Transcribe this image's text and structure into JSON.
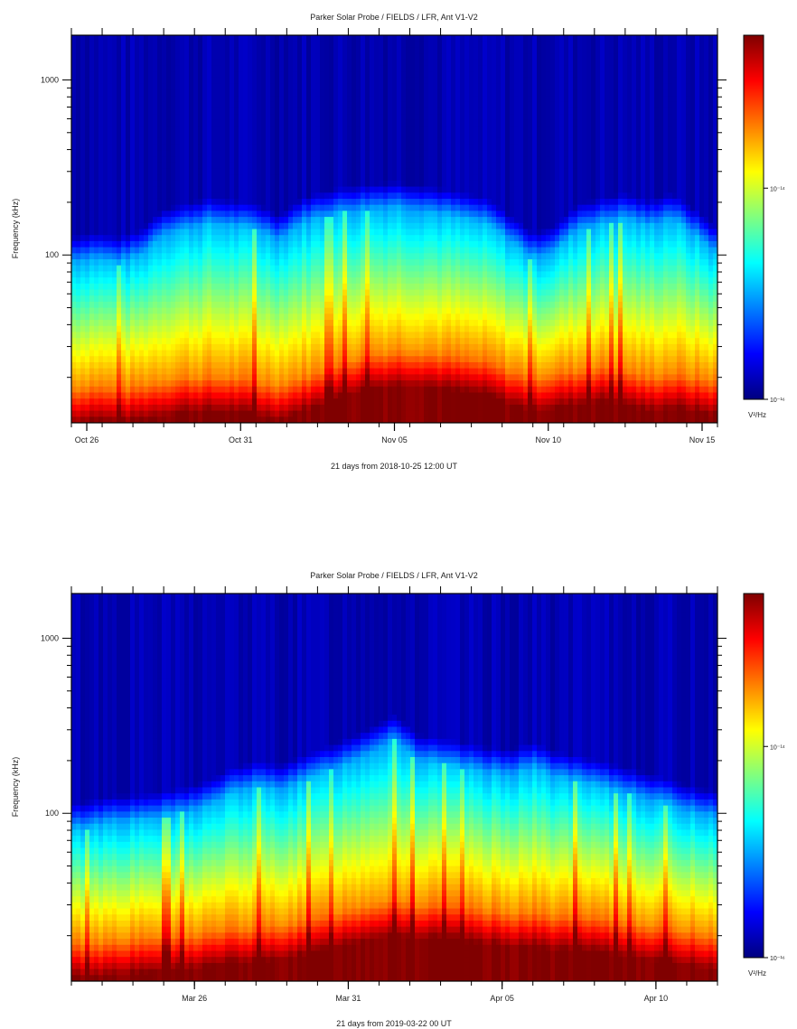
{
  "chart_data": [
    {
      "type": "heatmap",
      "title": "Parker Solar Probe / FIELDS / LFR, Ant V1-V2",
      "xlabel": "21 days from 2018-10-25 12:00 UT",
      "ylabel": "Frequency (kHz)",
      "x_range_days": [
        0,
        21
      ],
      "x_ticks": [
        {
          "label": "Oct 26",
          "day": 0.5
        },
        {
          "label": "Oct 31",
          "day": 5.5
        },
        {
          "label": "Nov 05",
          "day": 10.5
        },
        {
          "label": "Nov 10",
          "day": 15.5
        },
        {
          "label": "Nov 15",
          "day": 20.5
        }
      ],
      "y_scale": "log",
      "y_range": [
        11,
        1800
      ],
      "y_ticks": [
        {
          "label": "100",
          "value": 100
        },
        {
          "label": "1000",
          "value": 1000
        }
      ],
      "colorbar": {
        "unit": "V²/Hz",
        "scale": "log",
        "ticks": [
          {
            "label": "10⁻¹⁴",
            "frac": 0.58
          },
          {
            "label": "10⁻¹⁶",
            "frac": 0.0
          }
        ]
      },
      "ridge_khz_by_day": [
        90,
        95,
        90,
        98,
        130,
        140,
        150,
        145,
        140,
        120,
        150,
        165,
        175,
        180,
        185,
        178,
        170,
        160,
        150,
        120,
        95,
        105,
        140,
        150,
        160,
        145,
        160,
        130,
        100
      ],
      "hot_top_khz_by_day": [
        17,
        18,
        17,
        18,
        19,
        20,
        20,
        20,
        19,
        18,
        20,
        22,
        25,
        27,
        28,
        28,
        27,
        26,
        25,
        22,
        20,
        21,
        22,
        23,
        22,
        20,
        21,
        20,
        19
      ]
    },
    {
      "type": "heatmap",
      "title": "Parker Solar Probe / FIELDS / LFR, Ant V1-V2",
      "xlabel": "21 days from 2019-03-22 00 UT",
      "ylabel": "Frequency (kHz)",
      "x_range_days": [
        0,
        21
      ],
      "x_ticks": [
        {
          "label": "Mar 26",
          "day": 4
        },
        {
          "label": "Mar 31",
          "day": 9
        },
        {
          "label": "Apr 05",
          "day": 14
        },
        {
          "label": "Apr 10",
          "day": 19
        }
      ],
      "y_scale": "log",
      "y_range": [
        11,
        1800
      ],
      "y_ticks": [
        {
          "label": "100",
          "value": 100
        },
        {
          "label": "1000",
          "value": 1000
        }
      ],
      "colorbar": {
        "unit": "V²/Hz",
        "scale": "log",
        "ticks": [
          {
            "label": "10⁻¹⁴",
            "frac": 0.58
          },
          {
            "label": "10⁻¹⁶",
            "frac": 0.0
          }
        ]
      },
      "ridge_khz_by_day": [
        80,
        85,
        90,
        90,
        95,
        100,
        110,
        130,
        140,
        135,
        150,
        170,
        190,
        220,
        260,
        200,
        190,
        180,
        170,
        165,
        180,
        160,
        150,
        140,
        130,
        120,
        110,
        100,
        95
      ],
      "hot_top_khz_by_day": [
        18,
        18,
        19,
        19,
        20,
        20,
        21,
        22,
        22,
        23,
        24,
        26,
        28,
        30,
        32,
        30,
        30,
        29,
        28,
        27,
        27,
        26,
        26,
        25,
        24,
        23,
        22,
        21,
        20
      ]
    }
  ]
}
